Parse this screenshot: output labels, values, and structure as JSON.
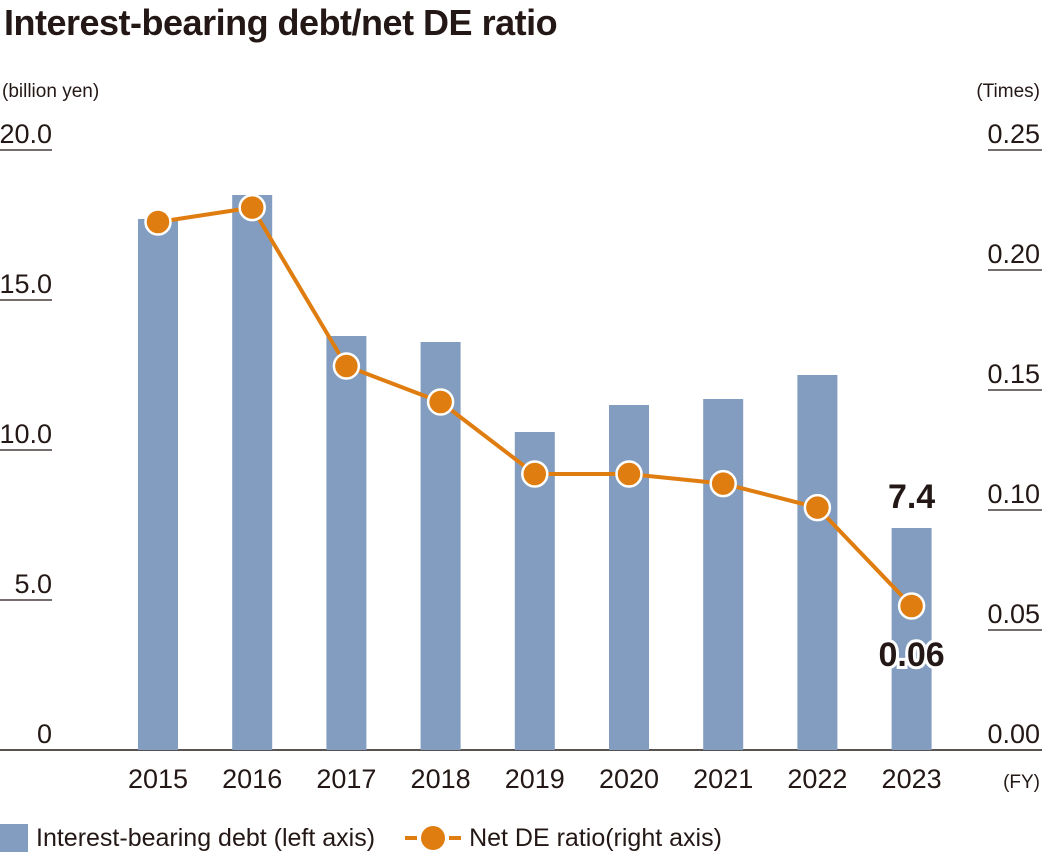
{
  "title": "Interest-bearing debt/net DE ratio",
  "colors": {
    "bar": "#829dbf",
    "line": "#e07d10",
    "axis": "#231815"
  },
  "chart_data": {
    "type": "bar",
    "title": "Interest-bearing debt/net DE ratio",
    "left_unit": "(billion yen)",
    "right_unit": "(Times)",
    "x_unit": "(FY)",
    "categories": [
      "2015",
      "2016",
      "2017",
      "2018",
      "2019",
      "2020",
      "2021",
      "2022",
      "2023"
    ],
    "left_axis": {
      "ylim": [
        0,
        20
      ],
      "ticks": [
        "0",
        "5.0",
        "10.0",
        "15.0",
        "20.0"
      ],
      "tick_values": [
        0,
        5,
        10,
        15,
        20
      ]
    },
    "right_axis": {
      "ylim": [
        0,
        0.25
      ],
      "ticks": [
        "0.00",
        "0.05",
        "0.10",
        "0.15",
        "0.20",
        "0.25"
      ],
      "tick_values": [
        0,
        0.05,
        0.1,
        0.15,
        0.2,
        0.25
      ]
    },
    "series": [
      {
        "name": "Interest-bearing debt (left axis)",
        "type": "bar",
        "axis": "left",
        "values": [
          17.7,
          18.5,
          13.8,
          13.6,
          10.6,
          11.5,
          11.7,
          12.5,
          7.4
        ]
      },
      {
        "name": "Net DE ratio(right axis)",
        "type": "line",
        "axis": "right",
        "values": [
          0.22,
          0.226,
          0.16,
          0.145,
          0.115,
          0.115,
          0.111,
          0.101,
          0.06
        ]
      }
    ],
    "annotations": [
      {
        "series": 0,
        "index": 8,
        "text": "7.4"
      },
      {
        "series": 1,
        "index": 8,
        "text": "0.06"
      }
    ],
    "grid": false,
    "legend_position": "bottom-left"
  },
  "legend": {
    "bar_label": "Interest-bearing debt (left axis)",
    "line_label": "Net DE ratio(right axis)"
  }
}
